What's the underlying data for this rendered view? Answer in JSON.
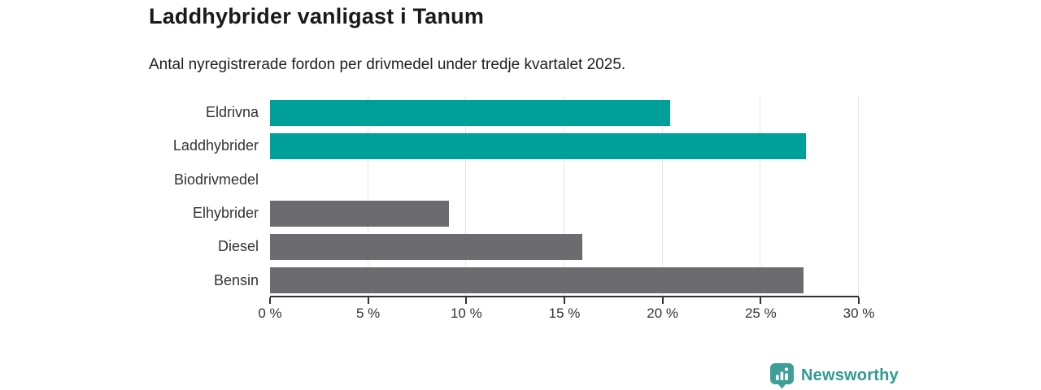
{
  "chart_data": {
    "type": "bar",
    "orientation": "horizontal",
    "title": "Laddhybrider vanligast i Tanum",
    "subtitle": "Antal nyregistrerade fordon per drivmedel under tredje kvartalet 2025.",
    "categories": [
      "Eldrivna",
      "Laddhybrider",
      "Biodrivmedel",
      "Elhybrider",
      "Diesel",
      "Bensin"
    ],
    "values": [
      20.4,
      27.3,
      0,
      9.1,
      15.9,
      27.2
    ],
    "bar_colors": [
      "#00A09A",
      "#00A09A",
      "#00A09A",
      "#6B6B70",
      "#6B6B70",
      "#6B6B70"
    ],
    "xlabel": "",
    "ylabel": "",
    "xlim": [
      0,
      30
    ],
    "x_ticks": [
      0,
      5,
      10,
      15,
      20,
      25,
      30
    ],
    "x_tick_labels": [
      "0 %",
      "5 %",
      "10 %",
      "15 %",
      "20 %",
      "25 %",
      "30 %"
    ],
    "grid": "vertical-only",
    "legend": "none"
  },
  "colors": {
    "teal_bar": "#00A09A",
    "gray_bar": "#6B6B70",
    "gridline": "#e4e4e4",
    "axis": "#333333",
    "title_text": "#1a1a1a",
    "logo_teal": "#2f9a93"
  },
  "branding": {
    "logo_text": "Newsworthy"
  }
}
